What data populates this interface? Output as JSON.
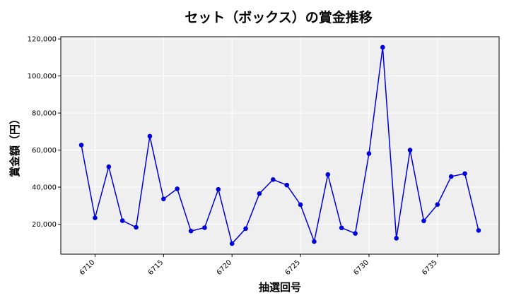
{
  "chart_data": {
    "type": "line",
    "title": "セット（ボックス）の賞金推移",
    "xlabel": "抽選回号",
    "ylabel": "賞金額（円）",
    "x": [
      6709,
      6710,
      6711,
      6712,
      6713,
      6714,
      6715,
      6716,
      6717,
      6718,
      6719,
      6720,
      6721,
      6722,
      6723,
      6724,
      6725,
      6726,
      6727,
      6728,
      6729,
      6730,
      6731,
      6732,
      6733,
      6734,
      6735,
      6736,
      6737,
      6738
    ],
    "series": [
      {
        "values": [
          62700,
          23400,
          51000,
          21900,
          18300,
          67500,
          33600,
          39100,
          16300,
          18100,
          38800,
          9500,
          17600,
          36500,
          44100,
          41100,
          30500,
          10600,
          46800,
          18000,
          15000,
          58100,
          115500,
          12400,
          60000,
          21800,
          30600,
          45700,
          47300,
          16600
        ],
        "color": "#0000dd"
      }
    ],
    "xlim": [
      6707.5,
      6739.5
    ],
    "ylim": [
      3800,
      121200
    ],
    "x_ticks": [
      6710,
      6715,
      6720,
      6725,
      6730,
      6735
    ],
    "x_tick_labels": [
      "6710",
      "6715",
      "6720",
      "6725",
      "6730",
      "6735"
    ],
    "y_ticks": [
      20000,
      40000,
      60000,
      80000,
      100000,
      120000
    ],
    "y_tick_labels": [
      "20,000",
      "40,000",
      "60,000",
      "80,000",
      "100,000",
      "120,000"
    ],
    "grid": true,
    "legend": "none",
    "plot_background": "#efefef",
    "grid_color": "#ffffff"
  }
}
